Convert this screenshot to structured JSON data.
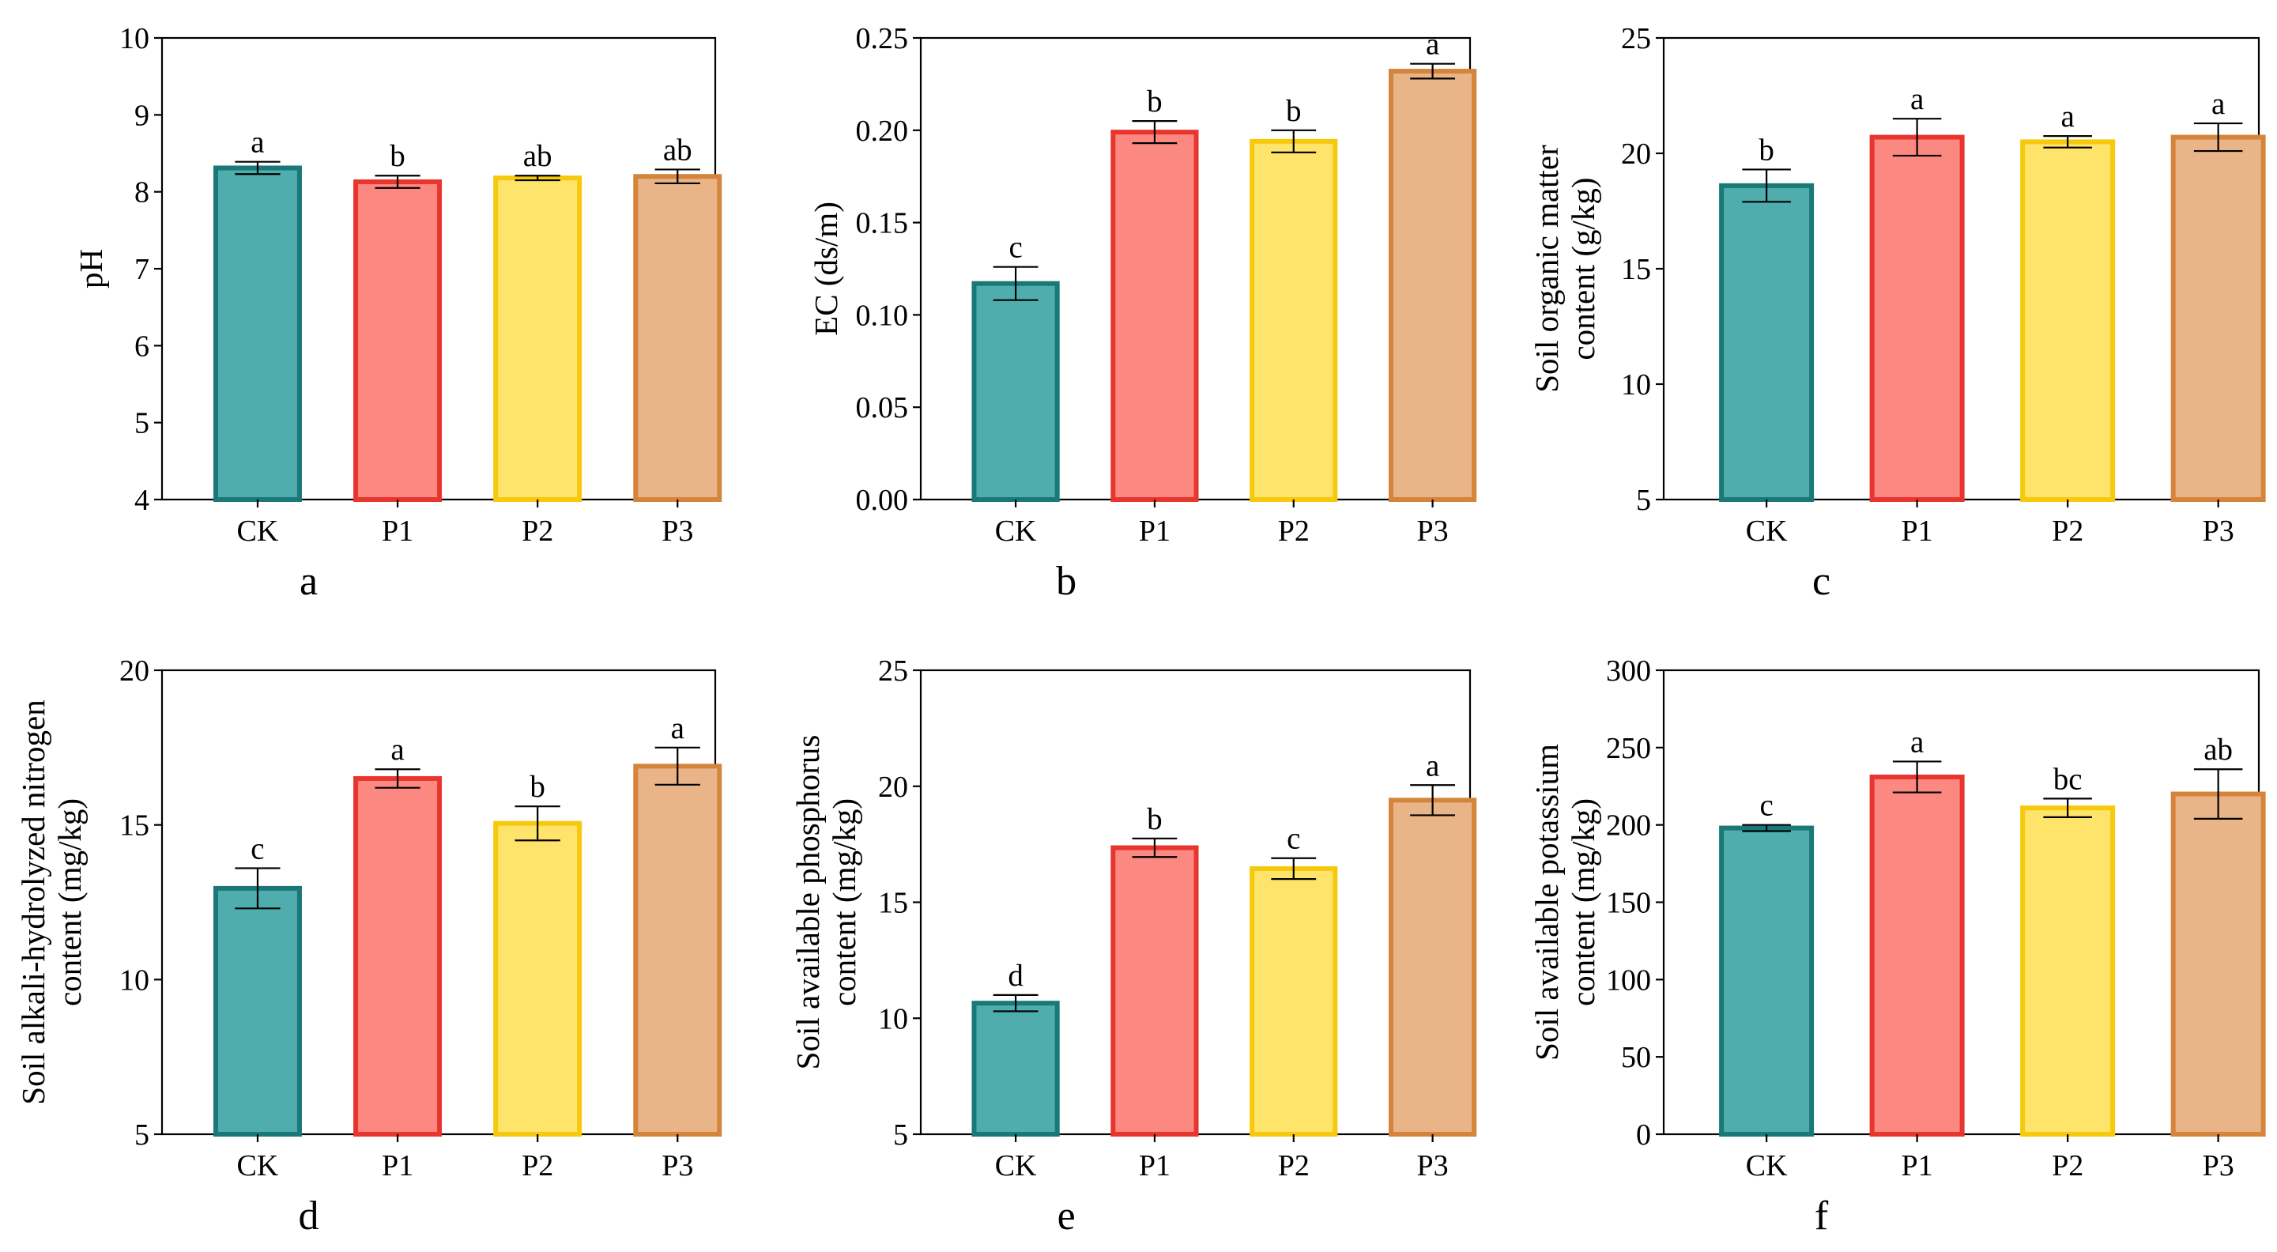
{
  "figure": {
    "colors": {
      "CK": {
        "fill": "#4fadad",
        "stroke": "#1a7878"
      },
      "P1": {
        "fill": "#fc8882",
        "stroke": "#e8352e"
      },
      "P2": {
        "fill": "#fee46a",
        "stroke": "#f6c90d"
      },
      "P3": {
        "fill": "#e8b488",
        "stroke": "#d5843c"
      }
    }
  },
  "chart_data": [
    {
      "type": "bar",
      "panel_label": "a",
      "title": "",
      "xlabel": "",
      "ylabel": [
        "pH"
      ],
      "categories": [
        "CK",
        "P1",
        "P2",
        "P3"
      ],
      "values": [
        8.31,
        8.13,
        8.18,
        8.2
      ],
      "errors": [
        0.08,
        0.08,
        0.03,
        0.09
      ],
      "significance": [
        "a",
        "b",
        "ab",
        "ab"
      ],
      "ylim": [
        4,
        10
      ],
      "yticks": [
        4,
        5,
        6,
        7,
        8,
        9,
        10
      ],
      "ytick_labels": [
        "4",
        "5",
        "6",
        "7",
        "8",
        "9",
        "10"
      ]
    },
    {
      "type": "bar",
      "panel_label": "b",
      "title": "",
      "xlabel": "",
      "ylabel": [
        "EC (ds/m)"
      ],
      "categories": [
        "CK",
        "P1",
        "P2",
        "P3"
      ],
      "values": [
        0.117,
        0.199,
        0.194,
        0.232
      ],
      "errors": [
        0.009,
        0.006,
        0.006,
        0.004
      ],
      "significance": [
        "c",
        "b",
        "b",
        "a"
      ],
      "ylim": [
        0,
        0.25
      ],
      "yticks": [
        0,
        0.05,
        0.1,
        0.15,
        0.2,
        0.25
      ],
      "ytick_labels": [
        "0.00",
        "0.05",
        "0.10",
        "0.15",
        "0.20",
        "0.25"
      ]
    },
    {
      "type": "bar",
      "panel_label": "c",
      "title": "",
      "xlabel": "",
      "ylabel": [
        "Soil organic matter",
        "content (g/kg)"
      ],
      "categories": [
        "CK",
        "P1",
        "P2",
        "P3"
      ],
      "values": [
        18.6,
        20.7,
        20.5,
        20.7
      ],
      "errors": [
        0.7,
        0.8,
        0.25,
        0.6
      ],
      "significance": [
        "b",
        "a",
        "a",
        "a"
      ],
      "ylim": [
        5,
        25
      ],
      "yticks": [
        5,
        10,
        15,
        20,
        25
      ],
      "ytick_labels": [
        "5",
        "10",
        "15",
        "20",
        "25"
      ]
    },
    {
      "type": "bar",
      "panel_label": "d",
      "title": "",
      "xlabel": "",
      "ylabel": [
        "Soil alkali-hydrolyzed nitrogen",
        "content (mg/kg)"
      ],
      "categories": [
        "CK",
        "P1",
        "P2",
        "P3"
      ],
      "values": [
        12.95,
        16.5,
        15.05,
        16.9
      ],
      "errors": [
        0.65,
        0.3,
        0.55,
        0.6
      ],
      "significance": [
        "c",
        "a",
        "b",
        "a"
      ],
      "ylim": [
        5,
        20
      ],
      "yticks": [
        5,
        10,
        15,
        20
      ],
      "ytick_labels": [
        "5",
        "10",
        "15",
        "20"
      ]
    },
    {
      "type": "bar",
      "panel_label": "e",
      "title": "",
      "xlabel": "",
      "ylabel": [
        "Soil available phosphorus",
        "content (mg/kg)"
      ],
      "categories": [
        "CK",
        "P1",
        "P2",
        "P3"
      ],
      "values": [
        10.65,
        17.35,
        16.45,
        19.4
      ],
      "errors": [
        0.35,
        0.4,
        0.45,
        0.65
      ],
      "significance": [
        "d",
        "b",
        "c",
        "a"
      ],
      "ylim": [
        5,
        25
      ],
      "yticks": [
        5,
        10,
        15,
        20,
        25
      ],
      "ytick_labels": [
        "5",
        "10",
        "15",
        "20",
        "25"
      ]
    },
    {
      "type": "bar",
      "panel_label": "f",
      "title": "",
      "xlabel": "",
      "ylabel": [
        "Soil available potassium",
        "content (mg/kg)"
      ],
      "categories": [
        "CK",
        "P1",
        "P2",
        "P3"
      ],
      "values": [
        198,
        231,
        211,
        220
      ],
      "errors": [
        2,
        10,
        6,
        16
      ],
      "significance": [
        "c",
        "a",
        "bc",
        "ab"
      ],
      "ylim": [
        0,
        300
      ],
      "yticks": [
        0,
        50,
        100,
        150,
        200,
        250,
        300
      ],
      "ytick_labels": [
        "0",
        "50",
        "100",
        "150",
        "200",
        "250",
        "300"
      ]
    }
  ]
}
